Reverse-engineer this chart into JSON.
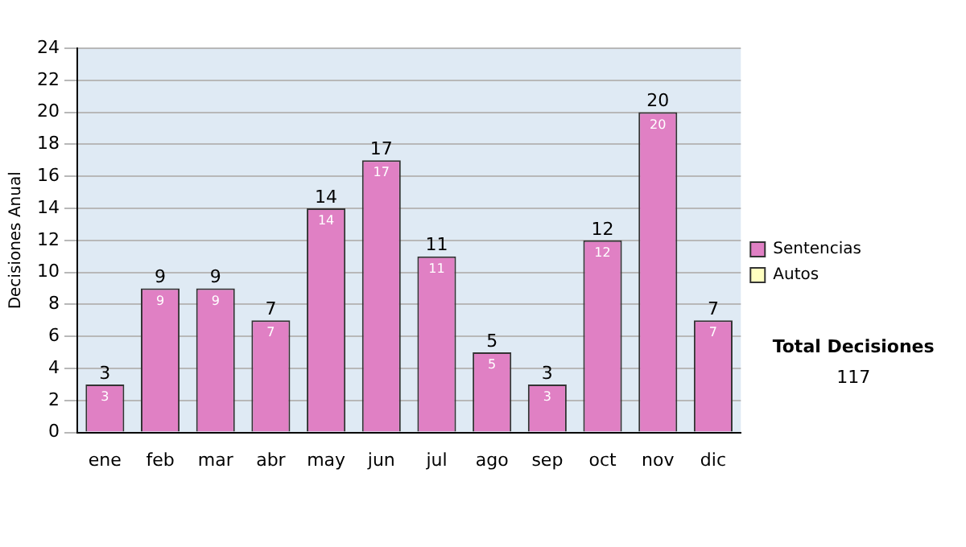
{
  "chart_data": {
    "type": "bar",
    "ylabel": "Decisiones Anual",
    "categories": [
      "ene",
      "feb",
      "mar",
      "abr",
      "may",
      "jun",
      "jul",
      "ago",
      "sep",
      "oct",
      "nov",
      "dic"
    ],
    "series": [
      {
        "name": "Sentencias",
        "color": "#e080c4",
        "values": [
          3,
          9,
          9,
          7,
          14,
          17,
          11,
          5,
          3,
          12,
          20,
          7
        ]
      },
      {
        "name": "Autos",
        "color": "#ffffc0",
        "values": [
          null,
          null,
          null,
          null,
          null,
          null,
          null,
          null,
          null,
          null,
          null,
          null
        ]
      }
    ],
    "ylim": [
      0,
      24
    ],
    "yticks": [
      0,
      2,
      4,
      6,
      8,
      10,
      12,
      14,
      16,
      18,
      20,
      22,
      24
    ],
    "grid": "y",
    "legend": "right",
    "data_labels": true,
    "annotations": [
      "Total Decisiones",
      "117",
      {
        "text": "3",
        "x": "ene",
        "y": 3
      },
      {
        "text": "9",
        "x": "feb",
        "y": 9
      },
      {
        "text": "9",
        "x": "mar",
        "y": 9
      },
      {
        "text": "7",
        "x": "abr",
        "y": 7
      },
      {
        "text": "14",
        "x": "may",
        "y": 14
      },
      {
        "text": "17",
        "x": "jun",
        "y": 17
      },
      {
        "text": "11",
        "x": "jul",
        "y": 11
      },
      {
        "text": "5",
        "x": "ago",
        "y": 5
      },
      {
        "text": "3",
        "x": "sep",
        "y": 3
      },
      {
        "text": "12",
        "x": "oct",
        "y": 12
      },
      {
        "text": "20",
        "x": "nov",
        "y": 20
      },
      {
        "text": "7",
        "x": "dic",
        "y": 7
      }
    ]
  }
}
